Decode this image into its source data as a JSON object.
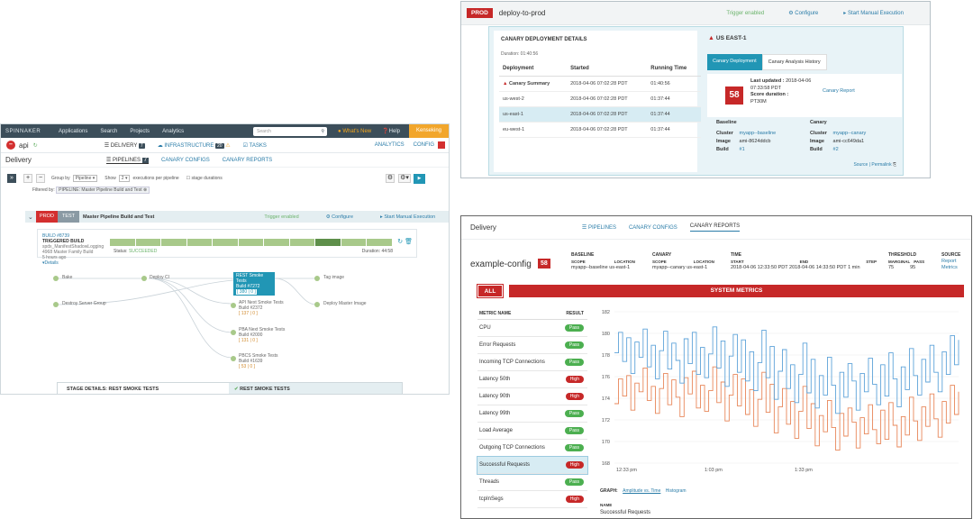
{
  "main": {
    "topnav": {
      "brand": "SPINNAKER",
      "items": [
        "Applications",
        "Search",
        "Projects",
        "Analytics"
      ],
      "search_placeholder": "Search",
      "whats_new": "What's New",
      "help": "Help",
      "user": "Kenseking"
    },
    "appbar": {
      "app_name": "api",
      "delivery": "DELIVERY",
      "delivery_count": "7",
      "infrastructure": "INFRASTRUCTURE",
      "infra_count": "20",
      "tasks": "TASKS",
      "analytics": "ANALYTICS",
      "config": "CONFIG"
    },
    "subbar": {
      "title": "Delivery",
      "pipelines": "PIPELINES",
      "pipelines_count": "7",
      "canary_configs": "CANARY CONFIGS",
      "canary_reports": "CANARY REPORTS"
    },
    "controls": {
      "group_by_label": "Group by",
      "group_by_value": "Pipeline",
      "show_label": "Show",
      "show_value": "2",
      "executions_label": "executions per pipeline",
      "stage_durations": "stage durations"
    },
    "filter": {
      "label": "Filtered by:",
      "chip": "PIPELINE: Master Pipeline Build and Test"
    },
    "pipeline": {
      "env_prod": "PROD",
      "env_test": "TEST",
      "name": "Master Pipeline Build and Test",
      "trigger": "Trigger enabled",
      "configure": "Configure",
      "manual": "Start Manual Execution"
    },
    "build": {
      "id": "BUILD #8739",
      "trigger": "TRIGGERED BUILD",
      "line1": "spdx_ManifestShadowLogging",
      "line2": "4968 Master Family Build",
      "ago": "5 hours ago",
      "details": "Details",
      "status_label": "Status:",
      "status": "SUCCEEDED",
      "duration_label": "Duration:",
      "duration": "44:58"
    },
    "stages": [
      {
        "label": "Bake"
      },
      {
        "label": "Deploy CI"
      },
      {
        "label": "Tag image"
      },
      {
        "label": "Destroy Server Group"
      },
      {
        "label": "Deploy Master Image"
      }
    ],
    "active_stage": {
      "title": "REST Smoke Tests",
      "build": "Build #7272",
      "counts": "[ 380 | 0 ]"
    },
    "sub_stages": [
      {
        "title": "API Next Smoke Tests",
        "build": "Build #2372",
        "counts": "[ 137 | 0 ]"
      },
      {
        "title": "PBA Next Smoke Tests",
        "build": "Build #2000",
        "counts": "[ 131 | 0 ]"
      },
      {
        "title": "PBCS Smoke Tests",
        "build": "Build #1639",
        "counts": "[ 53 | 0 ]"
      }
    ],
    "stage_details": {
      "title": "STAGE DETAILS: REST SMOKE TESTS",
      "tab": "REST SMOKE TESTS"
    }
  },
  "deploy": {
    "env": "PROD",
    "pipeline": "deploy-to-prod",
    "trigger": "Trigger enabled",
    "configure": "Configure",
    "manual": "Start Manual Execution",
    "details_title": "CANARY DEPLOYMENT DETAILS",
    "duration": "Duration: 01:40:56",
    "columns": [
      "Deployment",
      "Started",
      "Running Time"
    ],
    "rows": [
      {
        "name": "Canary Summary",
        "started": "2018-04-06 07:02:28 PDT",
        "time": "01:40:56",
        "warn": true
      },
      {
        "name": "us-west-2",
        "started": "2018-04-06 07:02:28 PDT",
        "time": "01:37:44"
      },
      {
        "name": "us-east-1",
        "started": "2018-04-06 07:02:28 PDT",
        "time": "01:37:44"
      },
      {
        "name": "eu-west-1",
        "started": "2018-04-06 07:02:28 PDT",
        "time": "01:37:44"
      }
    ],
    "region": "US EAST-1",
    "tab_active": "Canary Deployment",
    "tab_other": "Canary Analysis History",
    "score": "58",
    "last_updated_label": "Last updated :",
    "last_updated": "2018-04-06 07:33:58 PDT",
    "score_duration_label": "Score duration :",
    "score_duration": "PT30M",
    "canary_report": "Canary Report",
    "baseline": {
      "heading": "Baseline",
      "cluster": "myapp--baseline",
      "image": "ami-8624ddcb",
      "build": "#1"
    },
    "canary": {
      "heading": "Canary",
      "cluster": "myapp--canary",
      "image": "ami-cc649da1",
      "build": "#2"
    },
    "labels": {
      "cluster": "Cluster",
      "image": "Image",
      "build": "Build"
    },
    "source_permalink": "Source | Permalink"
  },
  "report": {
    "title": "Delivery",
    "tabs": [
      "PIPELINES",
      "CANARY CONFIGS",
      "CANARY REPORTS"
    ],
    "config_name": "example-config",
    "score": "58",
    "baseline": {
      "head": "BASELINE",
      "scope_h": "SCOPE",
      "scope": "myapp--baseline",
      "loc_h": "LOCATION",
      "loc": "us-east-1"
    },
    "canary": {
      "head": "CANARY",
      "scope_h": "SCOPE",
      "scope": "myapp--canary",
      "loc_h": "LOCATION",
      "loc": "us-east-1"
    },
    "time": {
      "head": "TIME",
      "start_h": "START",
      "start": "2018-04-06 12:33:50 PDT",
      "end_h": "END",
      "end": "2018-04-06 14:33:50 PDT",
      "step_h": "STEP",
      "step": "1 min"
    },
    "threshold": {
      "head": "THRESHOLD",
      "marginal_h": "MARGINAL",
      "marginal": "75",
      "pass_h": "PASS",
      "pass": "95"
    },
    "source": {
      "head": "SOURCE",
      "report": "Report",
      "metrics": "Metrics"
    },
    "all_label": "ALL",
    "system_metrics": "SYSTEM METRICS",
    "metric_col": "METRIC NAME",
    "result_col": "RESULT",
    "metrics": [
      {
        "name": "CPU",
        "result": "Pass"
      },
      {
        "name": "Error Requests",
        "result": "Pass"
      },
      {
        "name": "Incoming TCP Connections",
        "result": "Pass"
      },
      {
        "name": "Latency 50th",
        "result": "High"
      },
      {
        "name": "Latency 90th",
        "result": "High"
      },
      {
        "name": "Latency 99th",
        "result": "Pass"
      },
      {
        "name": "Load Average",
        "result": "Pass"
      },
      {
        "name": "Outgoing TCP Connections",
        "result": "Pass"
      },
      {
        "name": "Successful Requests",
        "result": "High",
        "selected": true
      },
      {
        "name": "Threads",
        "result": "Pass"
      },
      {
        "name": "tcpInSegs",
        "result": "High"
      }
    ],
    "graph_label": "GRAPH:",
    "graph_opt1": "Amplitude vs. Time",
    "graph_opt2": "Histogram",
    "name_label": "NAME",
    "name_value": "Successful Requests"
  },
  "chart_data": {
    "type": "line",
    "title": "",
    "xlabel": "",
    "ylabel": "",
    "ylim": [
      168,
      182
    ],
    "yticks": [
      168,
      170,
      172,
      174,
      176,
      178,
      180,
      182
    ],
    "xtick_labels": [
      "12:33 pm",
      "1:03 pm",
      "1:33 pm"
    ],
    "colors": {
      "baseline": "#e8875a",
      "canary": "#5ea3d9"
    },
    "series": [
      {
        "values": [
          173.5,
          175.8,
          174.2,
          176.1,
          172.9,
          175.4,
          174.6,
          176.8,
          173.8,
          175.1,
          172.6,
          174.9,
          176.3,
          173.4,
          175.7,
          174.1,
          172.3,
          175.9,
          174.4,
          176.5,
          173.1,
          175.2,
          172.8,
          174.7,
          176.9,
          173.6,
          175.5,
          171.9,
          174.3,
          176.2,
          173.3,
          175.8,
          172.5,
          174.8,
          171.4,
          173.9,
          176.4,
          172.7,
          175.3,
          170.8,
          173.2,
          174.9,
          171.6,
          173.7,
          170.3,
          172.8,
          175.1,
          171.2,
          173.5,
          169.6,
          172.4,
          170.9,
          173.8,
          171.3,
          169.2,
          172.6,
          170.5,
          173.1,
          171.8,
          169.4,
          172.2,
          170.7,
          173.4,
          171.1,
          169.8,
          172.9,
          170.2,
          173.6,
          171.5,
          169.5,
          172.3,
          170.6,
          174.1,
          171.9,
          170.1,
          173.2,
          171.4,
          174.4,
          172.1,
          170.4,
          173.7,
          171.7,
          175.2,
          172.5,
          174.6
        ]
      },
      {
        "values": [
          178.2,
          180.1,
          177.4,
          179.6,
          176.3,
          179.2,
          177.8,
          180.4,
          176.9,
          178.9,
          175.8,
          178.4,
          180.2,
          176.7,
          179.1,
          177.5,
          175.4,
          179.5,
          177.2,
          180.1,
          176.2,
          178.7,
          175.9,
          178.1,
          180.6,
          176.8,
          179.3,
          175.1,
          177.9,
          179.9,
          176.4,
          179.4,
          175.6,
          178.3,
          174.7,
          177.3,
          180.3,
          175.9,
          178.8,
          173.9,
          176.5,
          178.5,
          174.9,
          177.1,
          173.6,
          176.2,
          179.1,
          174.5,
          177.6,
          173.1,
          176.1,
          174.3,
          177.8,
          175.2,
          172.6,
          176.4,
          174.1,
          177.2,
          175.6,
          172.9,
          176.3,
          174.6,
          177.7,
          175.3,
          173.4,
          177.1,
          174.2,
          178.2,
          175.8,
          173.2,
          176.9,
          174.8,
          178.6,
          176.1,
          174.3,
          177.6,
          175.5,
          178.9,
          176.4,
          174.6,
          178.3,
          176.2,
          179.8,
          177.1,
          179.4
        ]
      }
    ]
  }
}
